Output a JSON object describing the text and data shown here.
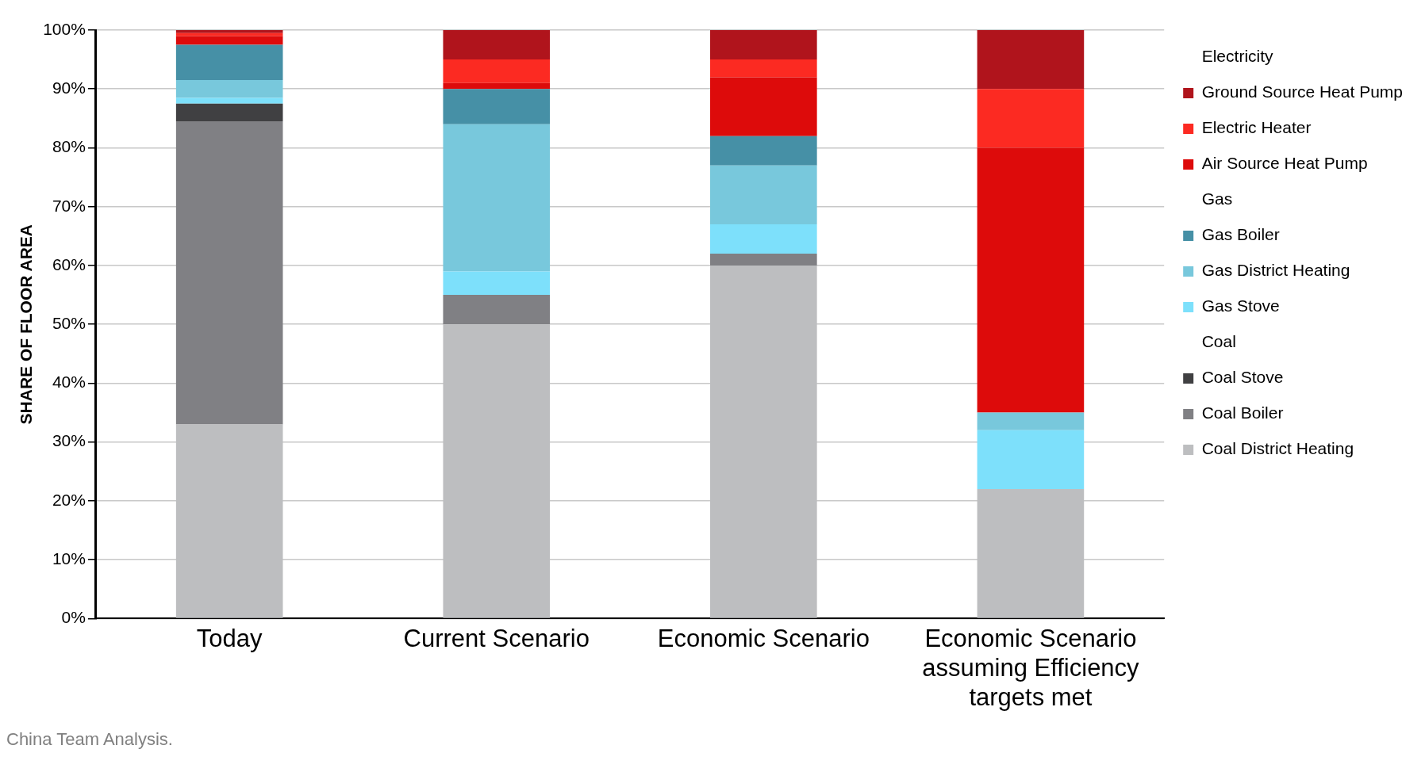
{
  "chart_data": {
    "type": "bar",
    "stacked": true,
    "ylabel": "SHARE OF FLOOR AREA",
    "categories": [
      "Today",
      "Current Scenario",
      "Economic Scenario",
      "Economic Scenario assuming Efficiency targets met"
    ],
    "series": [
      {
        "name": "Coal District Heating",
        "color": "#bdbec0",
        "values": [
          33,
          50,
          60,
          22
        ]
      },
      {
        "name": "Coal Boiler",
        "color": "#808084",
        "values": [
          51.5,
          5,
          2,
          0
        ]
      },
      {
        "name": "Coal Stove",
        "color": "#404042",
        "values": [
          3,
          0,
          0,
          0
        ]
      },
      {
        "name": "Coal",
        "values": [
          null,
          null,
          null,
          null
        ]
      },
      {
        "name": "Gas Stove",
        "color": "#7de0fb",
        "values": [
          1,
          4,
          5,
          10
        ]
      },
      {
        "name": "Gas District Heating",
        "color": "#78c8dc",
        "values": [
          3,
          25,
          10,
          3
        ]
      },
      {
        "name": "Gas Boiler",
        "color": "#4690a6",
        "values": [
          6,
          6,
          5,
          0
        ]
      },
      {
        "name": "Gas",
        "values": [
          null,
          null,
          null,
          null
        ]
      },
      {
        "name": "Air Source Heat Pump",
        "color": "#dd0b0b",
        "values": [
          1.5,
          1,
          10,
          45
        ]
      },
      {
        "name": "Electric Heater",
        "color": "#fc2a22",
        "values": [
          0.5,
          4,
          3,
          10
        ]
      },
      {
        "name": "Ground Source Heat Pump",
        "color": "#b0141c",
        "values": [
          0.5,
          5,
          5,
          10
        ]
      },
      {
        "name": "Electricity",
        "values": [
          null,
          null,
          null,
          null
        ]
      }
    ],
    "ylim": [
      0,
      100
    ],
    "yticks": [
      {
        "value": 0,
        "label": "0%"
      },
      {
        "value": 10,
        "label": "10%"
      },
      {
        "value": 20,
        "label": "20%"
      },
      {
        "value": 30,
        "label": "30%"
      },
      {
        "value": 40,
        "label": "40%"
      },
      {
        "value": 50,
        "label": "50%"
      },
      {
        "value": 60,
        "label": "60%"
      },
      {
        "value": 70,
        "label": "70%"
      },
      {
        "value": 80,
        "label": "80%"
      },
      {
        "value": 90,
        "label": "90%"
      },
      {
        "value": 100,
        "label": "100%"
      }
    ],
    "grid": "y",
    "legend": "top right",
    "annotations": [
      "China Team Analysis."
    ]
  }
}
